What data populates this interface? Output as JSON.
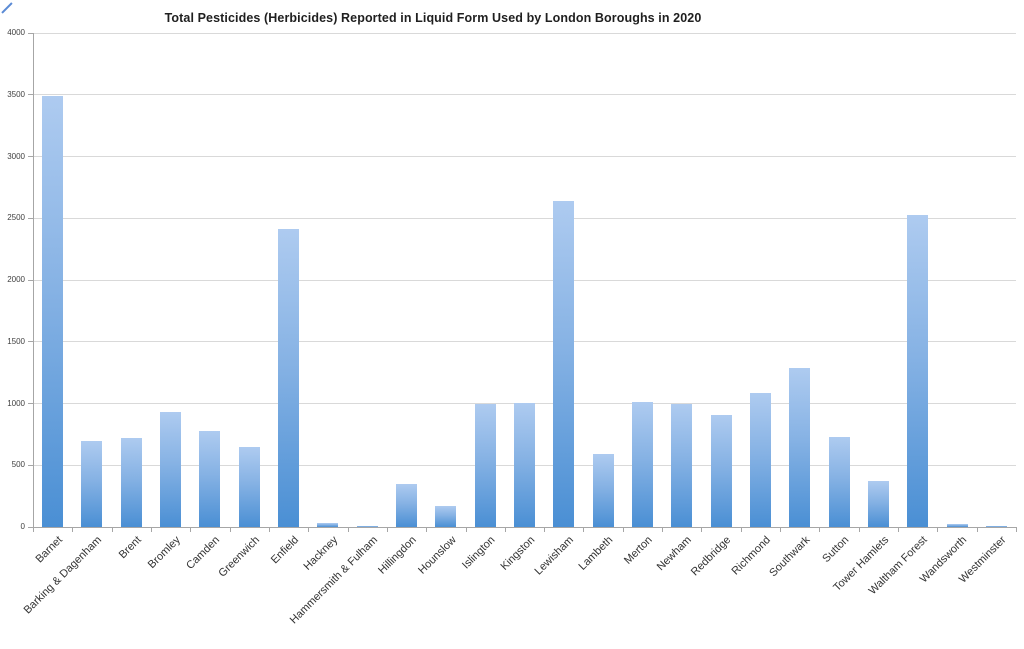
{
  "window": {
    "background_color": "#ffffff",
    "corner_mark_color": "#5b8bd5"
  },
  "chart_data": {
    "type": "bar",
    "title": "Total Pesticides (Herbicides) Reported in Liquid Form Used by London Boroughs in 2020",
    "xlabel": "",
    "ylabel": "",
    "categories": [
      "Barnet",
      "Barking & Dagenham",
      "Brent",
      "Bromley",
      "Camden",
      "Greenwich",
      "Enfield",
      "Hackney",
      "Hammersmith & Fulham",
      "Hillingdon",
      "Hounslow",
      "Islington",
      "Kingston",
      "Lewisham",
      "Lambeth",
      "Merton",
      "Newham",
      "Redbridge",
      "Richmond",
      "Southwark",
      "Sutton",
      "Tower Hamlets",
      "Waltham Forest",
      "Wandsworth",
      "Westminster"
    ],
    "values": [
      3490,
      695,
      720,
      930,
      780,
      650,
      2410,
      35,
      10,
      350,
      170,
      1000,
      1005,
      2640,
      590,
      1010,
      995,
      905,
      1085,
      1285,
      730,
      370,
      2525,
      25,
      10
    ],
    "ylim": [
      0,
      4000
    ],
    "yticks": [
      0,
      500,
      1000,
      1500,
      2000,
      2500,
      3000,
      3500,
      4000
    ],
    "grid": "horizontal",
    "legend": "none",
    "bar_gradient_top": "#aecbf0",
    "bar_gradient_bottom": "#4a8fd4",
    "gridline_color": "#d9d9d9",
    "axis_color": "#a6a6a6",
    "tick_label_color": "#3f3f3f",
    "category_label_color": "#333333",
    "title_color": "#1f1f1f"
  }
}
